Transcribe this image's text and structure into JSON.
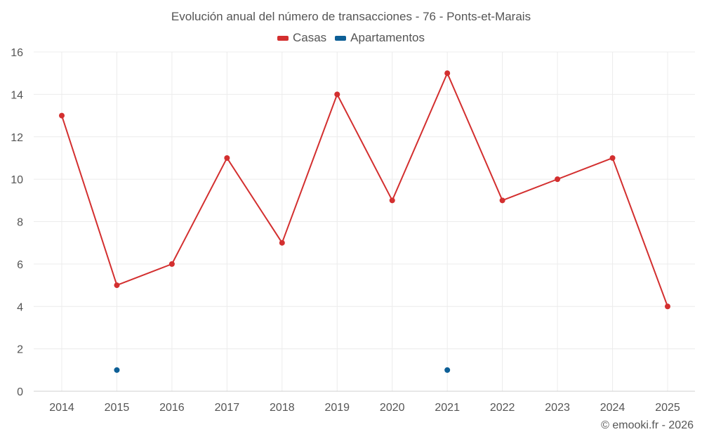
{
  "chart_data": {
    "type": "line",
    "title": "Evolución anual del número de transacciones - 76 - Ponts-et-Marais",
    "categories": [
      "2014",
      "2015",
      "2016",
      "2017",
      "2018",
      "2019",
      "2020",
      "2021",
      "2022",
      "2023",
      "2024",
      "2025"
    ],
    "series": [
      {
        "name": "Casas",
        "color": "#d32f2f",
        "values": [
          13,
          5,
          6,
          11,
          7,
          14,
          9,
          15,
          9,
          10,
          11,
          4
        ]
      },
      {
        "name": "Apartamentos",
        "color": "#0d5f96",
        "values": [
          null,
          1,
          null,
          null,
          null,
          null,
          null,
          1,
          null,
          null,
          null,
          null
        ]
      }
    ],
    "ylim": [
      0,
      16
    ],
    "yticks": [
      "0",
      "2",
      "4",
      "6",
      "8",
      "10",
      "12",
      "14",
      "16"
    ],
    "grid": true,
    "legend_position": "top-center"
  },
  "credit": "© emooki.fr - 2026"
}
